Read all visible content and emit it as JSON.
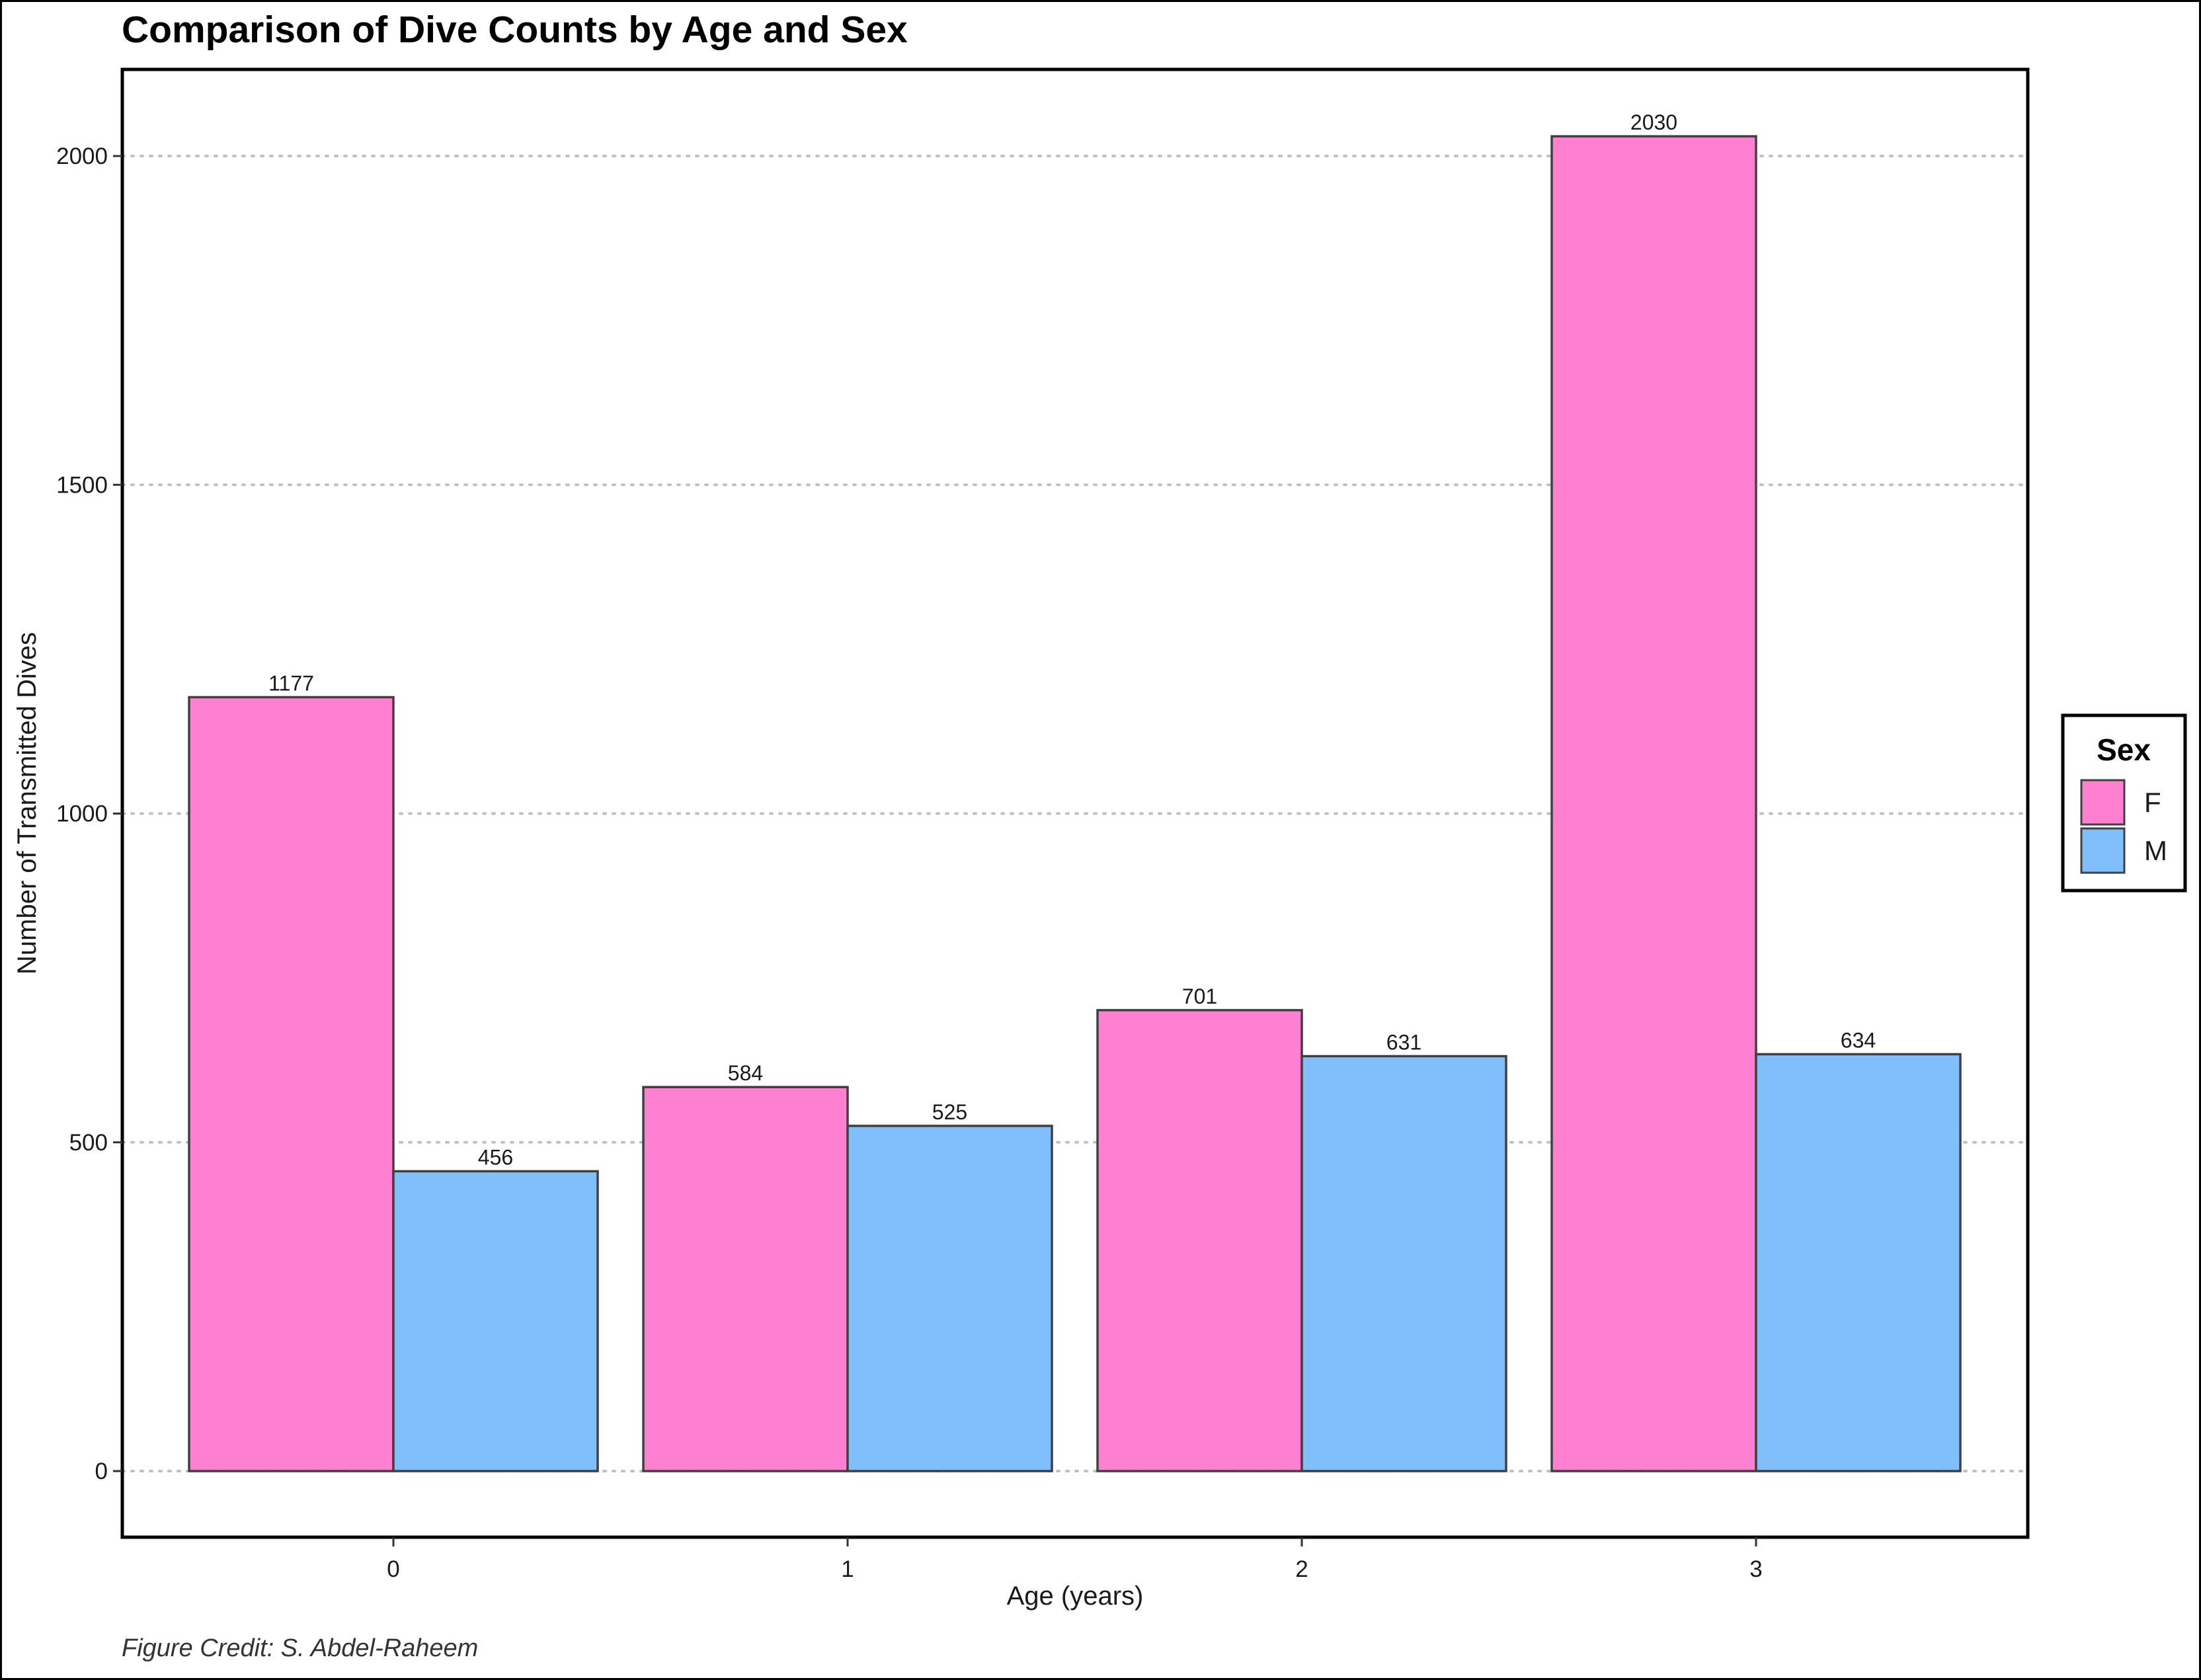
{
  "chart_data": {
    "type": "bar",
    "title": "Comparison of Dive Counts by Age and Sex",
    "xlabel": "Age (years)",
    "ylabel": "Number of Transmitted Dives",
    "categories": [
      "0",
      "1",
      "2",
      "3"
    ],
    "series": [
      {
        "name": "F",
        "values": [
          1177,
          584,
          701,
          2030
        ],
        "color": "#FF7FD0"
      },
      {
        "name": "M",
        "values": [
          456,
          525,
          631,
          634
        ],
        "color": "#80BEFC"
      }
    ],
    "ylim": [
      -100,
      2130
    ],
    "yticks": [
      0,
      500,
      1000,
      1500,
      2000
    ],
    "grid": "horizontal-dotted",
    "legend": {
      "title": "Sex",
      "position": "right"
    },
    "caption": "Figure Credit: S. Abdel-Raheem",
    "bar_outline_color": "#404040",
    "grid_color": "#C0C0C0"
  }
}
